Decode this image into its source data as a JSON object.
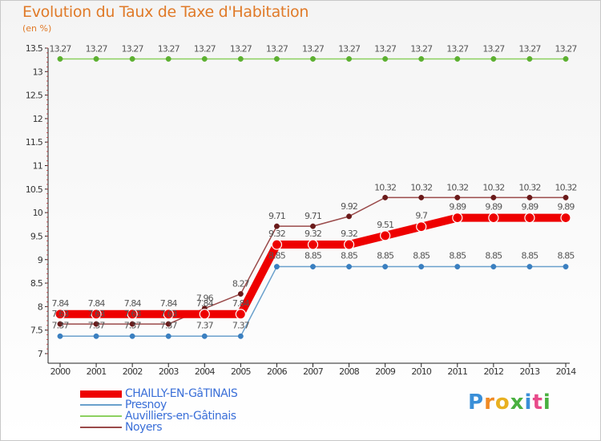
{
  "header": {
    "title": "Evolution du Taux de Taxe d'Habitation",
    "unit": "(en %)"
  },
  "logo_text": "Proxiti",
  "chart_data": {
    "type": "line",
    "title": "Evolution du Taux de Taxe d'Habitation",
    "ylabel": "(en %)",
    "xlabel": "",
    "x": [
      "2000",
      "2001",
      "2002",
      "2003",
      "2004",
      "2005",
      "2006",
      "2007",
      "2008",
      "2009",
      "2010",
      "2011",
      "2012",
      "2013",
      "2014"
    ],
    "ylim": [
      7,
      13.5
    ],
    "yticks": [
      7,
      7.5,
      8,
      8.5,
      9,
      9.5,
      10,
      10.5,
      11,
      11.5,
      12,
      12.5,
      13,
      13.5
    ],
    "grid": false,
    "series": [
      {
        "name": "CHAILLY-EN-GâTINAIS",
        "color": "#ee0000",
        "point_color": "#ee0000",
        "bold": true,
        "values": [
          7.84,
          7.84,
          7.84,
          7.84,
          7.84,
          7.84,
          9.32,
          9.32,
          9.32,
          9.51,
          9.7,
          9.89,
          9.89,
          9.89,
          9.89
        ],
        "labels": [
          "7.84",
          "7.84",
          "7.84",
          "7.84",
          "7.84",
          "7.84",
          "9.32",
          "9.32",
          "9.32",
          "9.51",
          "9.7",
          "9.89",
          "9.89",
          "9.89",
          "9.89"
        ]
      },
      {
        "name": "Presnoy",
        "color": "#6aa0cc",
        "point_color": "#3a7fc0",
        "bold": false,
        "values": [
          7.37,
          7.37,
          7.37,
          7.37,
          7.37,
          7.37,
          8.85,
          8.85,
          8.85,
          8.85,
          8.85,
          8.85,
          8.85,
          8.85,
          8.85
        ],
        "labels": [
          "7.37",
          "7.37",
          "7.37",
          "7.37",
          "7.37",
          "7.37",
          "8.85",
          "8.85",
          "8.85",
          "8.85",
          "8.85",
          "8.85",
          "8.85",
          "8.85",
          "8.85"
        ]
      },
      {
        "name": "Auvilliers-en-Gâtinais",
        "color": "#8cd060",
        "point_color": "#5cb030",
        "bold": false,
        "values": [
          13.27,
          13.27,
          13.27,
          13.27,
          13.27,
          13.27,
          13.27,
          13.27,
          13.27,
          13.27,
          13.27,
          13.27,
          13.27,
          13.27,
          13.27
        ],
        "labels": [
          "13.27",
          "13.27",
          "13.27",
          "13.27",
          "13.27",
          "13.27",
          "13.27",
          "13.27",
          "13.27",
          "13.27",
          "13.27",
          "13.27",
          "13.27",
          "13.27",
          "13.27"
        ]
      },
      {
        "name": "Noyers",
        "color": "#9a4a4a",
        "point_color": "#6a1a1a",
        "bold": false,
        "values": [
          7.63,
          7.63,
          7.63,
          7.63,
          7.96,
          8.27,
          9.71,
          9.71,
          9.92,
          10.32,
          10.32,
          10.32,
          10.32,
          10.32,
          10.32
        ],
        "labels": [
          "7.63",
          "7.63",
          "7.63",
          "7.63",
          "7.96",
          "8.27",
          "9.71",
          "9.71",
          "9.92",
          "10.32",
          "10.32",
          "10.32",
          "10.32",
          "10.32",
          "10.32"
        ]
      }
    ]
  }
}
